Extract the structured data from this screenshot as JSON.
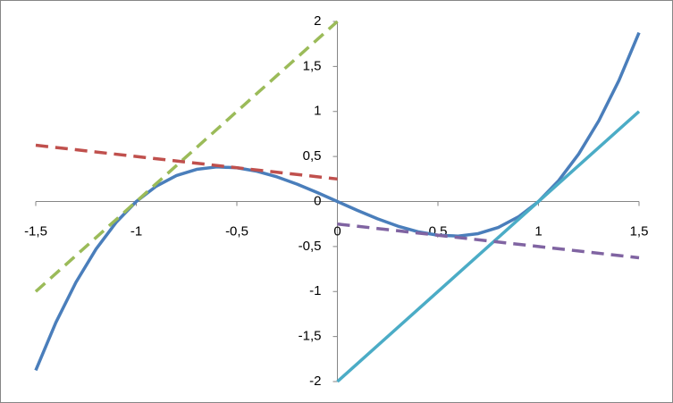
{
  "chart_data": {
    "type": "line",
    "xlim": [
      -1.5,
      1.5
    ],
    "ylim": [
      -2,
      2
    ],
    "xticks": [
      {
        "value": -1.5,
        "label": "-1,5"
      },
      -1,
      {
        "value": -0.5,
        "label": "-0,5"
      },
      0,
      {
        "value": 0.5,
        "label": "0,5"
      },
      1,
      {
        "value": 1.5,
        "label": "1,5"
      }
    ],
    "yticks": [
      -2,
      {
        "value": -1.5,
        "label": "-1,5"
      },
      -1,
      {
        "value": -0.5,
        "label": "-0,5"
      },
      0,
      {
        "value": 0.5,
        "label": "0,5"
      },
      1,
      {
        "value": 1.5,
        "label": "1,5"
      },
      2
    ],
    "grid": false,
    "series": [
      {
        "color": "#4a7ebb",
        "dashed": false,
        "x": [
          -1.5,
          -1.4,
          -1.3,
          -1.2,
          -1.1,
          -1.0,
          -0.9,
          -0.8,
          -0.7,
          -0.6,
          -0.5,
          -0.4,
          -0.3,
          -0.2,
          -0.1,
          0,
          0.1,
          0.2,
          0.3,
          0.4,
          0.5,
          0.6,
          0.7,
          0.8,
          0.9,
          1.0,
          1.1,
          1.2,
          1.3,
          1.4,
          1.5
        ],
        "values": [
          -1.875,
          -1.344,
          -0.897,
          -0.528,
          -0.231,
          0,
          0.171,
          0.288,
          0.357,
          0.384,
          0.375,
          0.336,
          0.273,
          0.192,
          0.099,
          0,
          -0.099,
          -0.192,
          -0.273,
          -0.336,
          -0.375,
          -0.384,
          -0.357,
          -0.288,
          -0.171,
          0,
          0.231,
          0.528,
          0.897,
          1.344,
          1.875
        ]
      },
      {
        "color": "#4bacc6",
        "dashed": false,
        "x": [
          0,
          1.5
        ],
        "values": [
          -2,
          1
        ]
      },
      {
        "color": "#9bbb59",
        "dashed": true,
        "x": [
          -1.5,
          0
        ],
        "values": [
          -1,
          2
        ]
      },
      {
        "color": "#c0504d",
        "dashed": true,
        "x": [
          -1.5,
          0
        ],
        "values": [
          0.625,
          0.25
        ]
      },
      {
        "color": "#8064a2",
        "dashed": true,
        "x": [
          0,
          1.5
        ],
        "values": [
          -0.25,
          -0.625
        ]
      }
    ]
  }
}
